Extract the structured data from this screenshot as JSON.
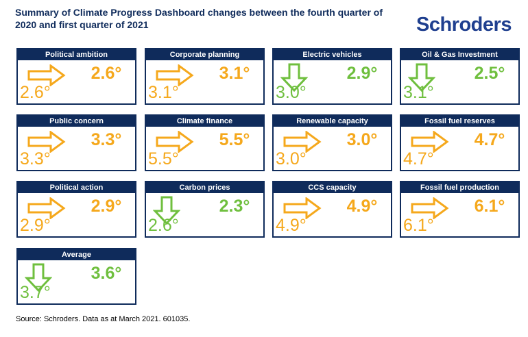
{
  "title": "Summary of Climate Progress Dashboard changes between the fourth quarter of 2020 and first quarter of 2021",
  "brand": "Schroders",
  "source": "Source: Schroders. Data as at March 2021. 601035.",
  "colors": {
    "navy": "#0f2b5b",
    "brand": "#1f3f8f",
    "unchanged": "#f5a81c",
    "improved": "#6fbf3e"
  },
  "chart_data": {
    "type": "table",
    "unit": "°",
    "items": [
      {
        "label": "Political ambition",
        "current": "2.6°",
        "previous": "2.6°",
        "current_value": 2.6,
        "previous_value": 2.6,
        "direction": "unchanged"
      },
      {
        "label": "Corporate planning",
        "current": "3.1°",
        "previous": "3.1°",
        "current_value": 3.1,
        "previous_value": 3.1,
        "direction": "unchanged"
      },
      {
        "label": "Electric vehicles",
        "current": "2.9°",
        "previous": "3.0°",
        "current_value": 2.9,
        "previous_value": 3.0,
        "direction": "down"
      },
      {
        "label": "Oil & Gas Investment",
        "current": "2.5°",
        "previous": "3.1°",
        "current_value": 2.5,
        "previous_value": 3.1,
        "direction": "down"
      },
      {
        "label": "Public concern",
        "current": "3.3°",
        "previous": "3.3°",
        "current_value": 3.3,
        "previous_value": 3.3,
        "direction": "unchanged"
      },
      {
        "label": "Climate finance",
        "current": "5.5°",
        "previous": "5.5°",
        "current_value": 5.5,
        "previous_value": 5.5,
        "direction": "unchanged"
      },
      {
        "label": "Renewable capacity",
        "current": "3.0°",
        "previous": "3.0°",
        "current_value": 3.0,
        "previous_value": 3.0,
        "direction": "unchanged"
      },
      {
        "label": "Fossil fuel reserves",
        "current": "4.7°",
        "previous": "4.7°",
        "current_value": 4.7,
        "previous_value": 4.7,
        "direction": "unchanged"
      },
      {
        "label": "Political action",
        "current": "2.9°",
        "previous": "2.9°",
        "current_value": 2.9,
        "previous_value": 2.9,
        "direction": "unchanged"
      },
      {
        "label": "Carbon prices",
        "current": "2.3°",
        "previous": "2.6°",
        "current_value": 2.3,
        "previous_value": 2.6,
        "direction": "down"
      },
      {
        "label": "CCS capacity",
        "current": "4.9°",
        "previous": "4.9°",
        "current_value": 4.9,
        "previous_value": 4.9,
        "direction": "unchanged"
      },
      {
        "label": "Fossil fuel production",
        "current": "6.1°",
        "previous": "6.1°",
        "current_value": 6.1,
        "previous_value": 6.1,
        "direction": "unchanged"
      },
      {
        "label": "Average",
        "current": "3.6°",
        "previous": "3.7°",
        "current_value": 3.6,
        "previous_value": 3.7,
        "direction": "down"
      }
    ]
  }
}
